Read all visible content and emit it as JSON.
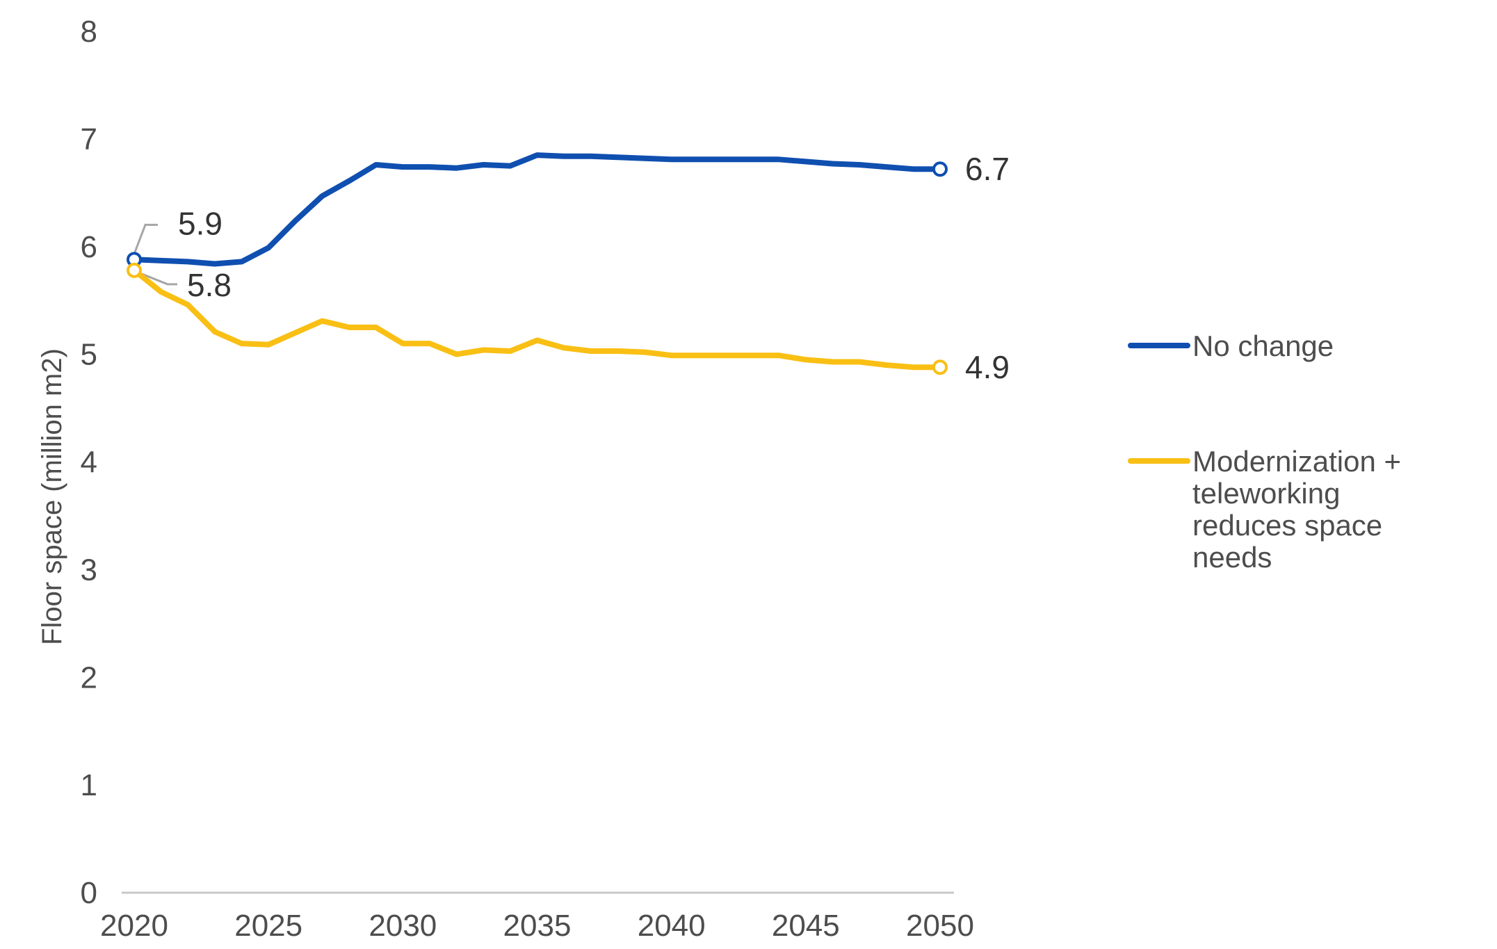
{
  "chart_data": {
    "type": "line",
    "ylabel": "Floor space (million m2)",
    "xlabel": "",
    "xlim": [
      2020,
      2050
    ],
    "ylim": [
      0,
      8
    ],
    "x_ticks": [
      2020,
      2025,
      2030,
      2035,
      2040,
      2045,
      2050
    ],
    "y_ticks": [
      0,
      1,
      2,
      3,
      4,
      5,
      6,
      7,
      8
    ],
    "grid": false,
    "legend_position": "right",
    "x": [
      2020,
      2021,
      2022,
      2023,
      2024,
      2025,
      2026,
      2027,
      2028,
      2029,
      2030,
      2031,
      2032,
      2033,
      2034,
      2035,
      2036,
      2037,
      2038,
      2039,
      2040,
      2041,
      2042,
      2043,
      2044,
      2045,
      2046,
      2047,
      2048,
      2049,
      2050
    ],
    "series": [
      {
        "name": "No change",
        "color": "#0f4fb0",
        "values": [
          5.88,
          5.87,
          5.86,
          5.84,
          5.86,
          5.99,
          6.24,
          6.47,
          6.61,
          6.76,
          6.74,
          6.74,
          6.73,
          6.76,
          6.75,
          6.85,
          6.84,
          6.84,
          6.83,
          6.82,
          6.81,
          6.81,
          6.81,
          6.81,
          6.81,
          6.79,
          6.77,
          6.76,
          6.74,
          6.72,
          6.72
        ],
        "start_label": "5.9",
        "end_label": "6.7"
      },
      {
        "name": "Modernization + teleworking reduces space needs",
        "name_lines": [
          "Modernization +",
          "teleworking",
          "reduces space",
          "needs"
        ],
        "color": "#f9bf14",
        "values": [
          5.78,
          5.58,
          5.46,
          5.21,
          5.1,
          5.09,
          5.2,
          5.31,
          5.25,
          5.25,
          5.1,
          5.1,
          5.0,
          5.04,
          5.03,
          5.13,
          5.06,
          5.03,
          5.03,
          5.02,
          4.99,
          4.99,
          4.99,
          4.99,
          4.99,
          4.95,
          4.93,
          4.93,
          4.9,
          4.88,
          4.88
        ],
        "start_label": "5.8",
        "end_label": "4.9"
      }
    ]
  }
}
